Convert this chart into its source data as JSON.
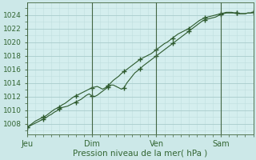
{
  "xlabel": "Pression niveau de la mer( hPa )",
  "bg_color": "#cce8e8",
  "plot_bg_color": "#d4eeee",
  "grid_major_color": "#a8cccc",
  "grid_minor_color": "#c0dede",
  "line_color": "#2d5a2d",
  "marker_color": "#2d5a2d",
  "ylim": [
    1006.5,
    1025.8
  ],
  "yticks": [
    1008,
    1010,
    1012,
    1014,
    1016,
    1018,
    1020,
    1022,
    1024
  ],
  "xtick_labels": [
    "Jeu",
    "Dim",
    "Ven",
    "Sam"
  ],
  "xtick_positions": [
    0,
    48,
    96,
    144
  ],
  "xlim_max": 168,
  "line1_x": [
    0,
    2,
    4,
    6,
    8,
    10,
    12,
    14,
    16,
    18,
    20,
    22,
    24,
    26,
    28,
    30,
    32,
    34,
    36,
    38,
    40,
    42,
    44,
    46,
    48,
    50,
    52,
    54,
    56,
    58,
    60,
    62,
    64,
    66,
    68,
    70,
    72,
    74,
    76,
    78,
    80,
    82,
    84,
    86,
    88,
    90,
    92,
    94,
    96,
    98,
    100,
    102,
    104,
    106,
    108,
    110,
    112,
    114,
    116,
    118,
    120,
    122,
    124,
    126,
    128,
    130,
    132,
    134,
    136,
    138,
    140,
    142,
    144,
    146,
    148,
    150,
    152,
    154,
    156,
    158,
    160,
    162,
    164,
    166,
    168
  ],
  "line1_y": [
    1007.5,
    1007.8,
    1008.1,
    1008.4,
    1008.6,
    1008.8,
    1009.0,
    1009.2,
    1009.5,
    1009.8,
    1010.1,
    1010.3,
    1010.5,
    1010.8,
    1011.0,
    1011.3,
    1011.6,
    1011.9,
    1012.1,
    1012.3,
    1012.5,
    1012.7,
    1012.9,
    1013.1,
    1013.3,
    1013.4,
    1013.5,
    1013.3,
    1013.1,
    1013.3,
    1013.6,
    1014.0,
    1014.4,
    1014.7,
    1015.0,
    1015.4,
    1015.7,
    1016.0,
    1016.3,
    1016.6,
    1016.9,
    1017.2,
    1017.5,
    1017.7,
    1017.9,
    1018.1,
    1018.3,
    1018.6,
    1018.9,
    1019.2,
    1019.5,
    1019.8,
    1020.0,
    1020.3,
    1020.6,
    1020.9,
    1021.2,
    1021.4,
    1021.6,
    1021.8,
    1022.0,
    1022.3,
    1022.6,
    1022.9,
    1023.2,
    1023.4,
    1023.6,
    1023.7,
    1023.8,
    1023.9,
    1024.0,
    1024.1,
    1024.2,
    1024.3,
    1024.4,
    1024.4,
    1024.4,
    1024.3,
    1024.3,
    1024.2,
    1024.2,
    1024.2,
    1024.3,
    1024.3,
    1024.4
  ],
  "line2_y": [
    1007.5,
    1007.7,
    1007.9,
    1008.1,
    1008.3,
    1008.5,
    1008.7,
    1008.9,
    1009.2,
    1009.4,
    1009.7,
    1009.9,
    1010.2,
    1010.4,
    1010.5,
    1010.6,
    1010.8,
    1011.0,
    1011.2,
    1011.4,
    1011.6,
    1011.9,
    1012.2,
    1012.4,
    1012.1,
    1012.0,
    1012.2,
    1012.5,
    1012.8,
    1013.1,
    1013.4,
    1013.7,
    1013.7,
    1013.5,
    1013.3,
    1013.1,
    1013.3,
    1014.0,
    1014.5,
    1015.0,
    1015.5,
    1015.8,
    1016.1,
    1016.5,
    1016.8,
    1017.1,
    1017.4,
    1017.7,
    1018.0,
    1018.3,
    1018.6,
    1018.9,
    1019.2,
    1019.5,
    1019.8,
    1020.1,
    1020.4,
    1020.7,
    1021.0,
    1021.3,
    1021.6,
    1021.9,
    1022.2,
    1022.5,
    1022.8,
    1023.1,
    1023.3,
    1023.4,
    1023.5,
    1023.6,
    1023.7,
    1023.9,
    1024.1,
    1024.2,
    1024.3,
    1024.3,
    1024.3,
    1024.3,
    1024.3,
    1024.2,
    1024.2,
    1024.2,
    1024.3,
    1024.3,
    1024.4
  ]
}
